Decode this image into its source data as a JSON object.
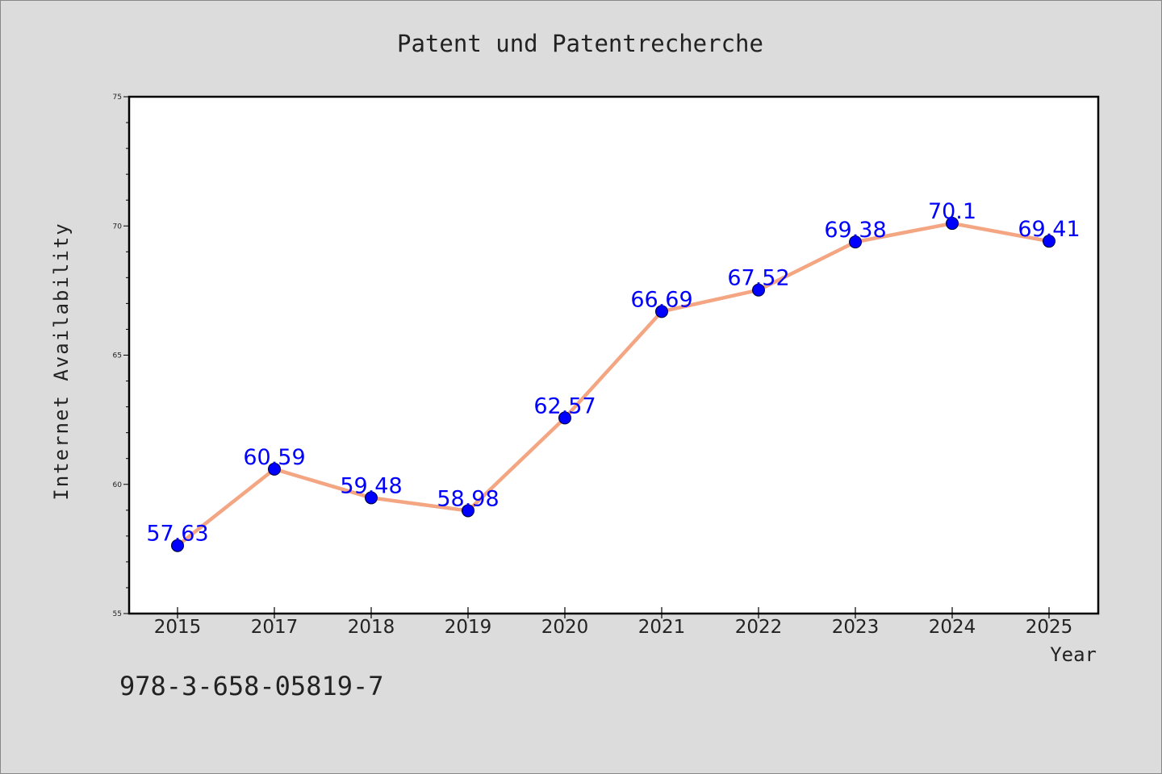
{
  "chart_data": {
    "type": "line",
    "title": "Patent und Patentrecherche",
    "xlabel": "Year",
    "ylabel": "Internet Availability",
    "categories": [
      "2015",
      "2017",
      "2018",
      "2019",
      "2020",
      "2021",
      "2022",
      "2023",
      "2024",
      "2025"
    ],
    "series": [
      {
        "values": [
          57.63,
          60.59,
          59.48,
          58.98,
          62.57,
          66.69,
          67.52,
          69.38,
          70.1,
          69.41
        ],
        "data_labels": [
          "57.63",
          "60.59",
          "59.48",
          "58.98",
          "62.57",
          "66.69",
          "67.52",
          "69.38",
          "70.1",
          "69.41"
        ],
        "line_color": "#f4a582",
        "marker_color": "#0000ff"
      }
    ],
    "ylim": [
      55,
      75
    ],
    "yticks": [
      55,
      60,
      65,
      70,
      75
    ],
    "ytick_labels": [
      "55",
      "60",
      "65",
      "70",
      "75"
    ],
    "label_color": "#0000ff",
    "grid": false,
    "legend": "none"
  },
  "footer": {
    "isbn": "978-3-658-05819-7"
  }
}
